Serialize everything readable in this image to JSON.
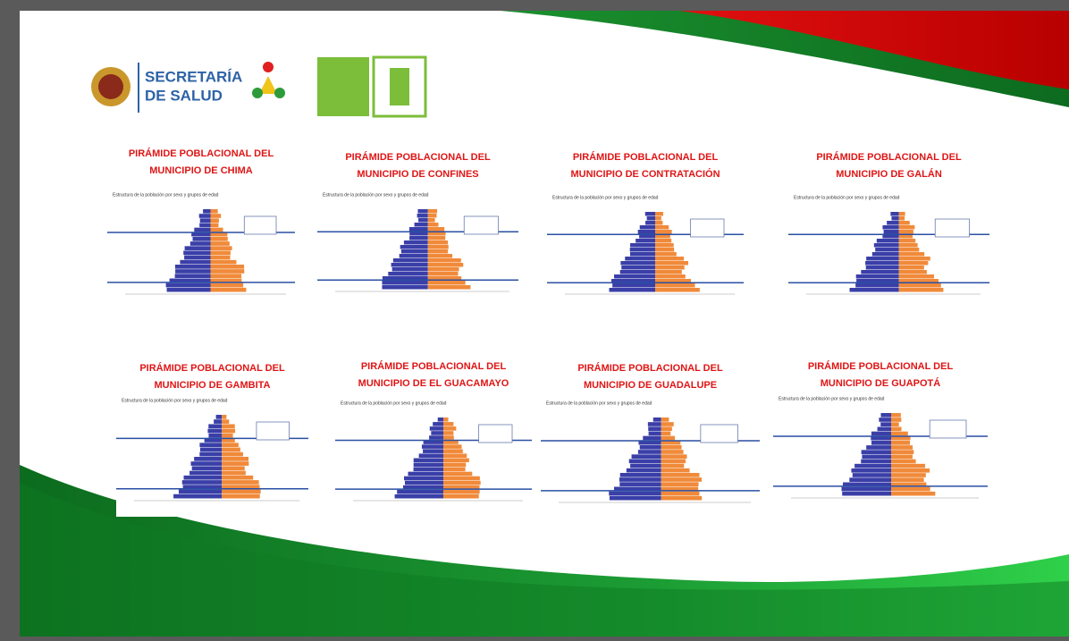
{
  "header": {
    "logo_text": [
      "SECRETARÍA",
      "DE SALUD"
    ]
  },
  "charts": [
    {
      "title": [
        "PIRÁMIDE POBLACIONAL DEL",
        "MUNICIPIO DE CHIMA"
      ],
      "subtitle": "Estructura de la población por sexo y grupos de edad"
    },
    {
      "title": [
        "PIRÁMIDE POBLACIONAL DEL",
        "MUNICIPIO DE CONFINES"
      ],
      "subtitle": "Estructura de la población por sexo y grupos de edad"
    },
    {
      "title": [
        "PIRÁMIDE POBLACIONAL DEL",
        "MUNICIPIO DE CONTRATACIÓN"
      ],
      "subtitle": "Estructura de la población por sexo y grupos de edad"
    },
    {
      "title": [
        "PIRÁMIDE POBLACIONAL DEL",
        "MUNICIPIO DE GALÁN"
      ],
      "subtitle": "Estructura de la población por sexo y grupos de edad"
    },
    {
      "title": [
        "PIRÁMIDE POBLACIONAL DEL",
        "MUNICIPIO DE GAMBITA"
      ],
      "subtitle": "Estructura de la población por sexo y grupos de edad"
    },
    {
      "title": [
        "PIRÁMIDE POBLACIONAL DEL",
        "MUNICIPIO DE EL GUACAMAYO"
      ],
      "subtitle": "Estructura de la población por sexo y grupos de edad"
    },
    {
      "title": [
        "PIRÁMIDE POBLACIONAL DEL",
        "MUNICIPIO DE GUADALUPE"
      ],
      "subtitle": "Estructura de la población por sexo y grupos de edad"
    },
    {
      "title": [
        "PIRÁMIDE POBLACIONAL DEL",
        "MUNICIPIO DE GUAPOTÁ"
      ],
      "subtitle": "Estructura de la población por sexo y grupos de edad"
    }
  ]
}
